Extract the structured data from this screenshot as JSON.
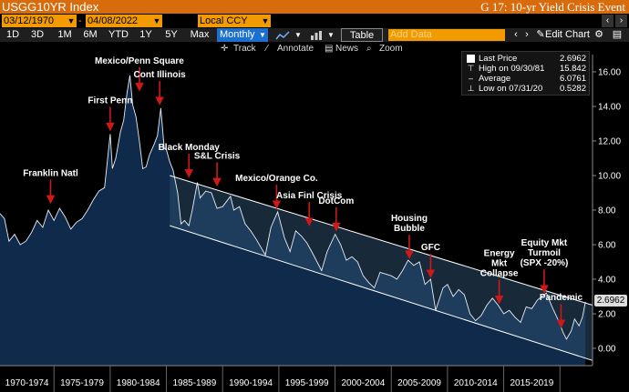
{
  "header": {
    "ticker": "USGG10YR Index",
    "title": "G 17: 10-yr Yield Crisis Event"
  },
  "range": {
    "start": "03/12/1970",
    "end": "04/08/2022",
    "currency": "Local CCY"
  },
  "toolbar": {
    "periods": [
      "1D",
      "3D",
      "1M",
      "6M",
      "YTD",
      "1Y",
      "5Y",
      "Max"
    ],
    "frequency": "Monthly",
    "table": "Table",
    "add_data_placeholder": "Add Data",
    "edit_chart": "Edit Chart"
  },
  "subtoolbar": {
    "track": "Track",
    "annotate": "Annotate",
    "news": "News",
    "zoom": "Zoom"
  },
  "legend": {
    "last_label": "Last Price",
    "last_value": "2.6962",
    "high_label": "High on 09/30/81",
    "high_value": "15.842",
    "avg_label": "Average",
    "avg_value": "6.0761",
    "low_label": "Low on 07/31/20",
    "low_value": "0.5282"
  },
  "last_tag": "2.6962",
  "colors": {
    "accent": "#f29b00",
    "area_fill": "#0f2a4a",
    "channel_fill": "#2c4a6a",
    "annotation_arrow": "#d01818",
    "active_button": "#1b6fd0"
  },
  "chart_data": {
    "type": "area",
    "series": [
      {
        "name": "",
        "x": [
          1970.2,
          1970.6,
          1971.0,
          1971.5,
          1972.0,
          1972.5,
          1973.0,
          1973.5,
          1974.0,
          1974.5,
          1975.0,
          1975.5,
          1976.0,
          1976.5,
          1977.0,
          1977.5,
          1978.0,
          1978.5,
          1979.0,
          1979.5,
          1980.0,
          1980.2,
          1980.5,
          1980.9,
          1981.2,
          1981.5,
          1981.75,
          1982.0,
          1982.3,
          1982.6,
          1982.9,
          1983.2,
          1983.5,
          1983.9,
          1984.2,
          1984.5,
          1984.8,
          1985.0,
          1985.3,
          1985.6,
          1986.0,
          1986.3,
          1986.6,
          1987.0,
          1987.3,
          1987.75,
          1988.0,
          1988.5,
          1989.0,
          1989.5,
          1990.0,
          1990.7,
          1991.0,
          1991.5,
          1992.0,
          1992.5,
          1993.0,
          1993.8,
          1994.3,
          1994.9,
          1995.5,
          1996.0,
          1996.5,
          1997.0,
          1997.5,
          1998.0,
          1998.8,
          1999.3,
          2000.0,
          2000.5,
          2001.0,
          2001.5,
          2002.0,
          2002.5,
          2003.0,
          2003.5,
          2004.0,
          2004.5,
          2005.0,
          2005.5,
          2006.0,
          2006.5,
          2007.0,
          2007.5,
          2008.0,
          2008.5,
          2008.95,
          2009.3,
          2009.6,
          2010.0,
          2010.5,
          2011.0,
          2011.5,
          2012.0,
          2012.5,
          2013.0,
          2013.5,
          2014.0,
          2014.5,
          2015.0,
          2015.5,
          2016.0,
          2016.5,
          2017.0,
          2017.5,
          2018.0,
          2018.8,
          2019.3,
          2019.8,
          2020.3,
          2020.58,
          2021.0,
          2021.3,
          2021.7,
          2022.0,
          2022.27
        ],
        "y": [
          7.8,
          7.5,
          6.2,
          6.6,
          6.0,
          6.2,
          6.7,
          7.4,
          7.0,
          8.0,
          7.4,
          8.1,
          7.6,
          6.9,
          7.3,
          7.5,
          8.0,
          8.6,
          9.1,
          9.3,
          12.4,
          10.4,
          11.0,
          12.5,
          13.2,
          14.8,
          15.8,
          14.1,
          13.4,
          12.0,
          10.4,
          10.5,
          11.2,
          11.8,
          12.3,
          13.9,
          11.6,
          11.5,
          10.8,
          10.3,
          9.0,
          7.2,
          7.4,
          7.1,
          8.0,
          9.6,
          8.7,
          9.1,
          9.0,
          8.1,
          8.2,
          8.8,
          8.0,
          8.2,
          7.2,
          6.8,
          6.3,
          5.4,
          7.0,
          7.9,
          6.4,
          5.6,
          6.8,
          6.5,
          6.1,
          5.5,
          4.5,
          5.6,
          6.6,
          6.0,
          5.1,
          5.3,
          5.0,
          4.2,
          3.8,
          3.5,
          4.4,
          4.3,
          4.2,
          4.0,
          4.5,
          5.1,
          4.8,
          5.0,
          3.7,
          4.0,
          2.2,
          2.9,
          3.5,
          3.7,
          3.0,
          3.4,
          3.1,
          2.0,
          1.6,
          1.9,
          2.5,
          2.9,
          2.5,
          2.0,
          2.2,
          1.8,
          1.5,
          2.4,
          2.3,
          2.8,
          3.2,
          2.4,
          1.7,
          0.9,
          0.53,
          1.0,
          1.7,
          1.3,
          1.8,
          2.6962
        ]
      }
    ],
    "x_tick_labels": [
      "1970-1974",
      "1975-1979",
      "1980-1984",
      "1985-1989",
      "1990-1994",
      "1995-1999",
      "2000-2004",
      "2005-2009",
      "2010-2014",
      "2015-2019"
    ],
    "y_ticks": [
      0,
      2,
      4,
      6,
      8,
      10,
      12,
      14,
      16
    ],
    "y_tick_labels": [
      "0.00",
      "2.00",
      "4.00",
      "6.00",
      "8.00",
      "10.00",
      "12.00",
      "14.00",
      "16.00"
    ],
    "xlim": [
      1970.2,
      2022.9
    ],
    "ylim": [
      -1.0,
      17.0
    ],
    "channel": {
      "upper": [
        {
          "x": 1985.3,
          "y": 10.0
        },
        {
          "x": 2022.9,
          "y": 2.5
        }
      ],
      "lower": [
        {
          "x": 1985.3,
          "y": 7.1
        },
        {
          "x": 2022.9,
          "y": -0.7
        }
      ]
    },
    "annotations": [
      {
        "label": "Franklin Natl",
        "x": 1974.7,
        "y": 8.4
      },
      {
        "label": "First Penn",
        "x": 1980.0,
        "y": 12.6
      },
      {
        "label": "Mexico/Penn Square",
        "x": 1982.6,
        "y": 14.9
      },
      {
        "label": "Cont Illinois",
        "x": 1984.4,
        "y": 14.1
      },
      {
        "label": "Black Monday",
        "x": 1987.0,
        "y": 9.9
      },
      {
        "label": "S&L Crisis",
        "x": 1989.5,
        "y": 9.4
      },
      {
        "label": "Mexico/Orange Co.",
        "x": 1994.8,
        "y": 8.1
      },
      {
        "label": "Asia Finl Crisis",
        "x": 1997.7,
        "y": 7.1
      },
      {
        "label": "DotCom",
        "x": 2000.1,
        "y": 6.8
      },
      {
        "label": "Housing Bubble",
        "x": 2006.6,
        "y": 5.2
      },
      {
        "label": "GFC",
        "x": 2008.5,
        "y": 4.1
      },
      {
        "label": "Energy Mkt Collapse",
        "x": 2014.6,
        "y": 2.6
      },
      {
        "label": "Equity Mkt Turmoil (SPX -20%)",
        "x": 2018.6,
        "y": 3.2
      },
      {
        "label": "Pandemic",
        "x": 2020.1,
        "y": 1.2
      }
    ],
    "grid": false,
    "legend_position": "top-right"
  }
}
